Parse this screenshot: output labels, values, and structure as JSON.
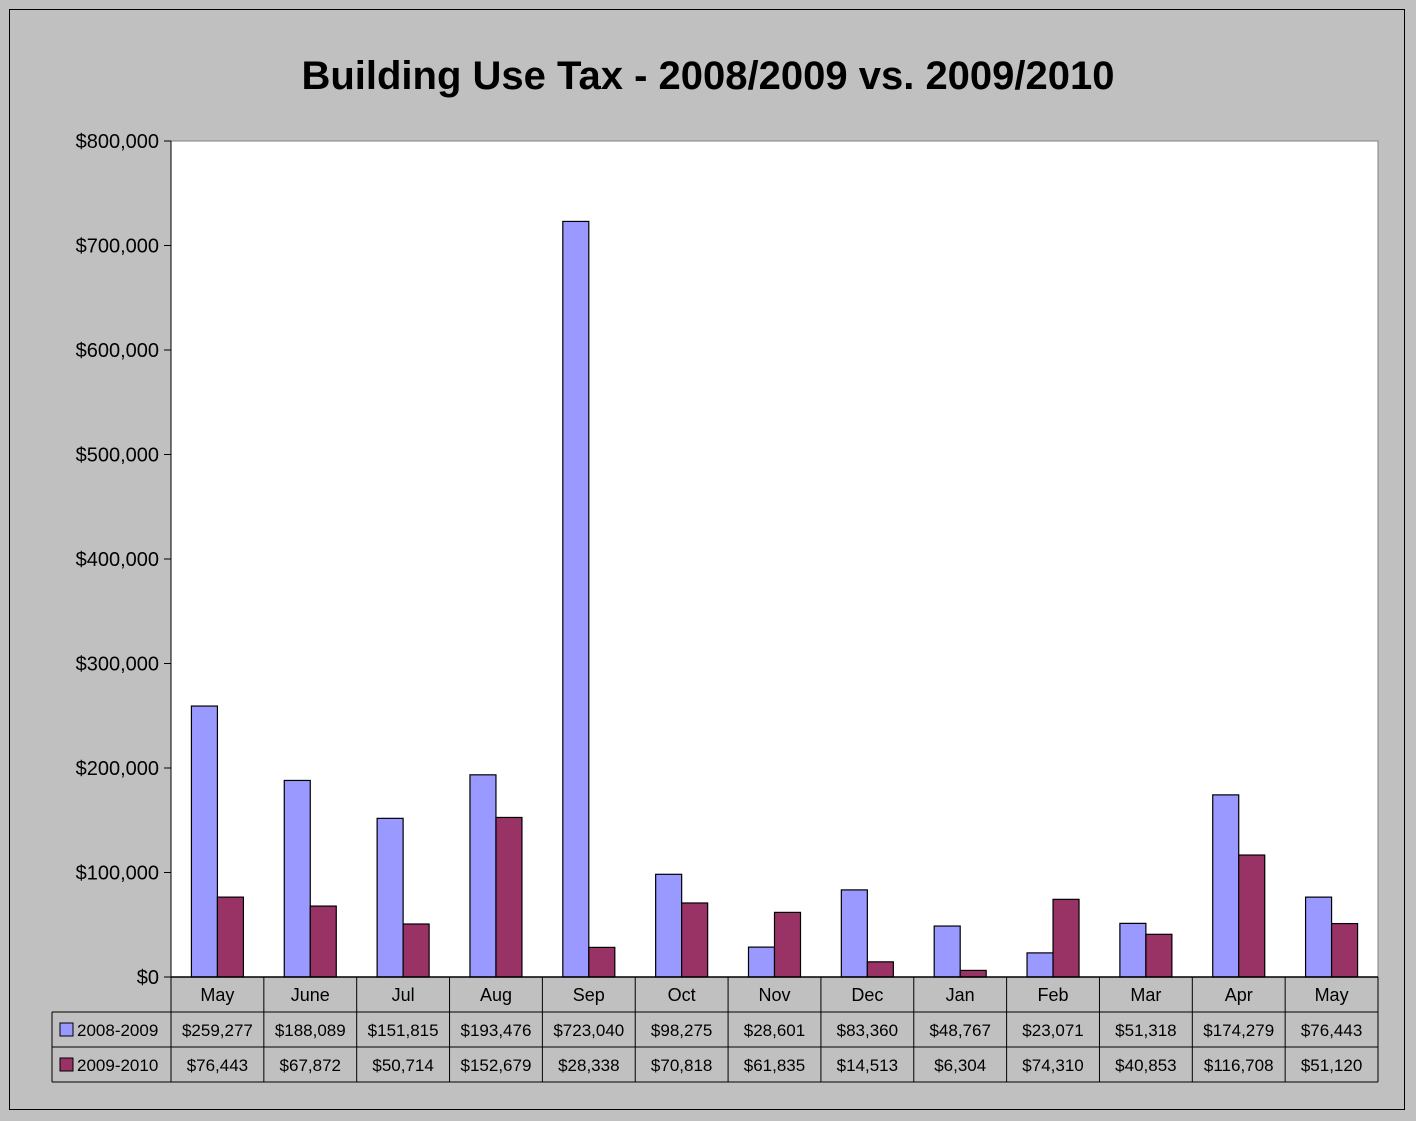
{
  "chart_data": {
    "type": "bar",
    "title": "Building Use Tax - 2008/2009 vs. 2009/2010",
    "categories": [
      "May",
      "June",
      "Jul",
      "Aug",
      "Sep",
      "Oct",
      "Nov",
      "Dec",
      "Jan",
      "Feb",
      "Mar",
      "Apr",
      "May"
    ],
    "series": [
      {
        "name": "2008-2009",
        "color": "#9999ff",
        "values": [
          259277,
          188089,
          151815,
          193476,
          723040,
          98275,
          28601,
          83360,
          48767,
          23071,
          51318,
          174279,
          76443
        ],
        "labels": [
          "$259,277",
          "$188,089",
          "$151,815",
          "$193,476",
          "$723,040",
          "$98,275",
          "$28,601",
          "$83,360",
          "$48,767",
          "$23,071",
          "$51,318",
          "$174,279",
          "$76,443"
        ]
      },
      {
        "name": "2009-2010",
        "color": "#993366",
        "values": [
          76443,
          67872,
          50714,
          152679,
          28338,
          70818,
          61835,
          14513,
          6304,
          74310,
          40853,
          116708,
          51120
        ],
        "labels": [
          "$76,443",
          "$67,872",
          "$50,714",
          "$152,679",
          "$28,338",
          "$70,818",
          "$61,835",
          "$14,513",
          "$6,304",
          "$74,310",
          "$40,853",
          "$116,708",
          "$51,120"
        ]
      }
    ],
    "ylim": [
      0,
      800000
    ],
    "ytick_values": [
      0,
      100000,
      200000,
      300000,
      400000,
      500000,
      600000,
      700000,
      800000
    ],
    "ytick_labels": [
      "$0",
      "$100,000",
      "$200,000",
      "$300,000",
      "$400,000",
      "$500,000",
      "$600,000",
      "$700,000",
      "$800,000"
    ],
    "grid": false,
    "legend": "data-table",
    "plot_background": "#ffffff",
    "chart_background": "#c0c0c0"
  }
}
